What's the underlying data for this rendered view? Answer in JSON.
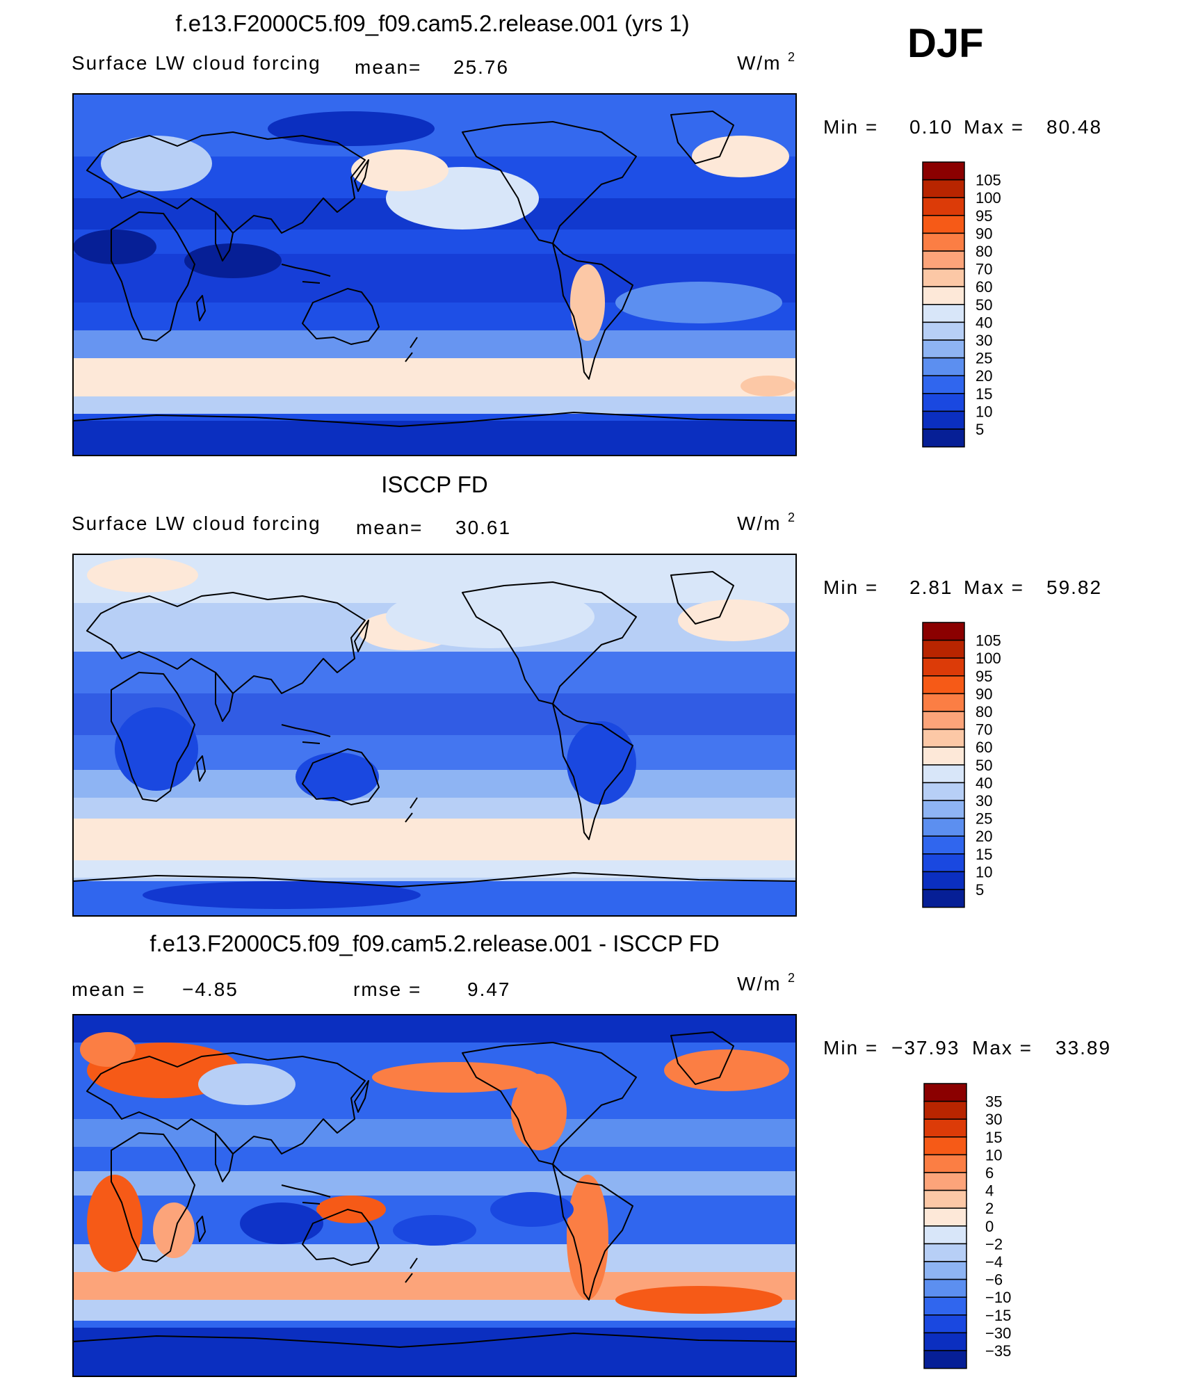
{
  "season": "DJF",
  "panels": [
    {
      "id": "model",
      "title": "f.e13.F2000C5.f09_f09.cam5.2.release.001 (yrs 1)",
      "subtitle_left": "Surface LW cloud forcing",
      "mean_label": "mean=",
      "mean_value": "25.76",
      "units": "W/m",
      "units_exp": "2",
      "min_label": "Min =",
      "min_value": "0.10",
      "max_label": "Max =",
      "max_value": "80.48",
      "colorbar_labels": [
        "105",
        "100",
        "95",
        "90",
        "80",
        "70",
        "60",
        "50",
        "40",
        "30",
        "25",
        "20",
        "15",
        "10",
        "5"
      ],
      "colorbar_colors": [
        "#8b0000",
        "#b82500",
        "#dc3b08",
        "#f65a17",
        "#fb7e44",
        "#fca47a",
        "#fcc8a6",
        "#fde8d8",
        "#d8e6f9",
        "#b7cff6",
        "#8eb4f3",
        "#5c8ff0",
        "#3066ee",
        "#1a48e0",
        "#0b2fc0",
        "#061f96"
      ]
    },
    {
      "id": "obs",
      "title": "ISCCP FD",
      "subtitle_left": "Surface LW cloud forcing",
      "mean_label": "mean=",
      "mean_value": "30.61",
      "units": "W/m",
      "units_exp": "2",
      "min_label": "Min =",
      "min_value": "2.81",
      "max_label": "Max =",
      "max_value": "59.82",
      "colorbar_labels": [
        "105",
        "100",
        "95",
        "90",
        "80",
        "70",
        "60",
        "50",
        "40",
        "30",
        "25",
        "20",
        "15",
        "10",
        "5"
      ],
      "colorbar_colors": [
        "#8b0000",
        "#b82500",
        "#dc3b08",
        "#f65a17",
        "#fb7e44",
        "#fca47a",
        "#fcc8a6",
        "#fde8d8",
        "#d8e6f9",
        "#b7cff6",
        "#8eb4f3",
        "#5c8ff0",
        "#3066ee",
        "#1a48e0",
        "#0b2fc0",
        "#061f96"
      ]
    },
    {
      "id": "diff",
      "title": "f.e13.F2000C5.f09_f09.cam5.2.release.001 - ISCCP FD",
      "mean_label": "mean =",
      "mean_value": "−4.85",
      "rmse_label": "rmse =",
      "rmse_value": "9.47",
      "units": "W/m",
      "units_exp": "2",
      "min_label": "Min =",
      "min_value": "−37.93",
      "max_label": "Max =",
      "max_value": "33.89",
      "colorbar_labels": [
        "35",
        "30",
        "15",
        "10",
        "6",
        "4",
        "2",
        "0",
        "−2",
        "−4",
        "−6",
        "−10",
        "−15",
        "−30",
        "−35"
      ],
      "colorbar_colors": [
        "#8b0000",
        "#b82500",
        "#dc3b08",
        "#f65a17",
        "#fb7e44",
        "#fca47a",
        "#fcc8a6",
        "#fde8d8",
        "#d8e6f9",
        "#b7cff6",
        "#8eb4f3",
        "#5c8ff0",
        "#3066ee",
        "#1a48e0",
        "#0b2fc0",
        "#061f96"
      ]
    }
  ]
}
